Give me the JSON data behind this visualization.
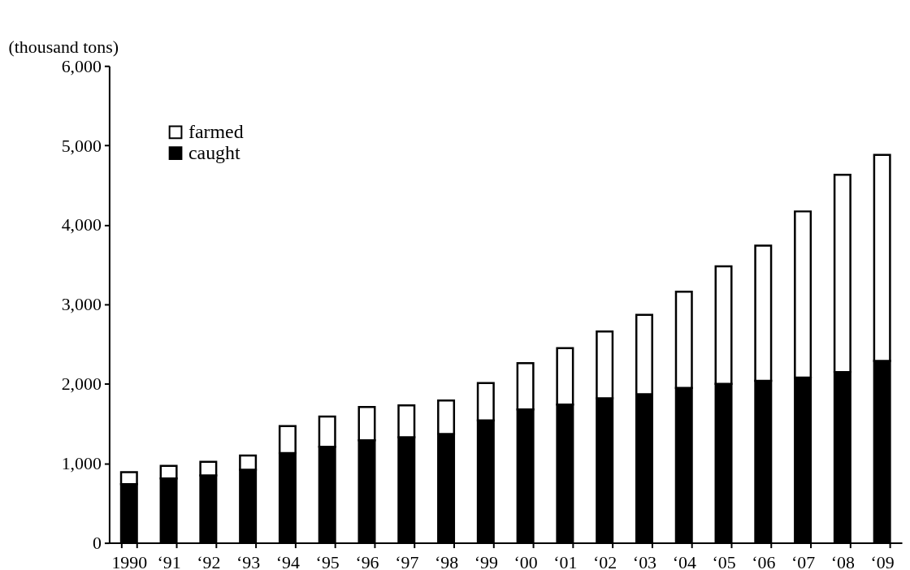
{
  "chart_data": {
    "type": "bar",
    "stacked": true,
    "ylabel": "(thousand tons)",
    "categories": [
      "1990",
      "‘91",
      "‘92",
      "‘93",
      "‘94",
      "‘95",
      "‘96",
      "‘97",
      "‘98",
      "‘99",
      "‘00",
      "‘01",
      "‘02",
      "‘03",
      "‘04",
      "‘05",
      "‘06",
      "‘07",
      "‘08",
      "‘09"
    ],
    "series": [
      {
        "name": "caught",
        "color": "#000000",
        "values": [
          740,
          810,
          850,
          920,
          1130,
          1210,
          1290,
          1330,
          1370,
          1540,
          1680,
          1740,
          1820,
          1870,
          1950,
          2000,
          2040,
          2080,
          2150,
          2290
        ]
      },
      {
        "name": "farmed",
        "color": "#ffffff",
        "values": [
          150,
          160,
          170,
          180,
          340,
          380,
          420,
          400,
          420,
          470,
          580,
          710,
          840,
          1000,
          1210,
          1480,
          1700,
          2090,
          2480,
          2590
        ]
      }
    ],
    "ylim": [
      0,
      6000
    ],
    "yticks": [
      {
        "value": 0,
        "label": "0"
      },
      {
        "value": 1000,
        "label": "1,000"
      },
      {
        "value": 2000,
        "label": "2,000"
      },
      {
        "value": 3000,
        "label": "3,000"
      },
      {
        "value": 4000,
        "label": "4,000"
      },
      {
        "value": 5000,
        "label": "5,000"
      },
      {
        "value": 6000,
        "label": "6,000"
      }
    ],
    "grid": false,
    "legend": "top left"
  }
}
